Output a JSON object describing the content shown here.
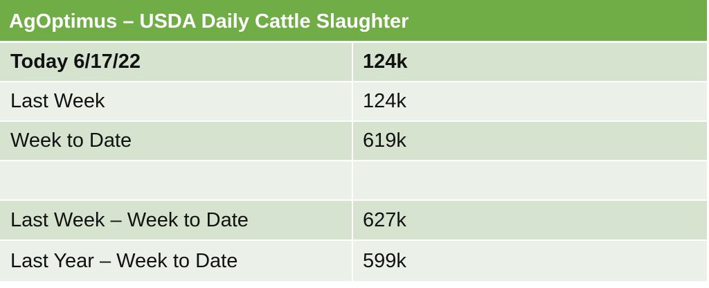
{
  "table": {
    "title": "AgOptimus – USDA Daily Cattle Slaughter",
    "rows": [
      {
        "label": "Today 6/17/22",
        "value": "124k"
      },
      {
        "label": "Last Week",
        "value": "124k"
      },
      {
        "label": "Week to Date",
        "value": "619k"
      },
      {
        "label": "",
        "value": ""
      },
      {
        "label": "Last Week – Week to Date",
        "value": "627k"
      },
      {
        "label": "Last Year – Week to Date",
        "value": "599k"
      }
    ]
  },
  "colors": {
    "header": "#70ad47",
    "row_dark": "#d5e3cf",
    "row_light": "#ebf1e9"
  }
}
